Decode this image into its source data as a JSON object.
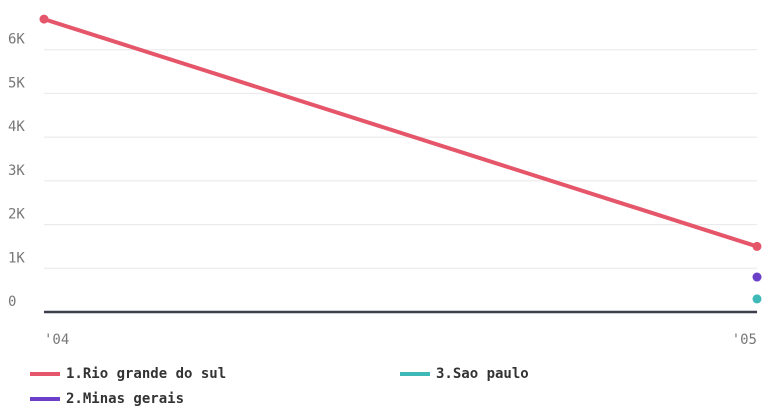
{
  "chart_data": {
    "type": "line",
    "categories": [
      "'04",
      "'05"
    ],
    "series": [
      {
        "name": "1.Rio grande do sul",
        "color": "#e5566a",
        "values": [
          6700,
          1500
        ]
      },
      {
        "name": "2.Minas gerais",
        "color": "#6c3fc8",
        "values": [
          null,
          800
        ]
      },
      {
        "name": "3.Sao paulo",
        "color": "#3fb8b8",
        "values": [
          null,
          300
        ]
      }
    ],
    "ylim": [
      0,
      7000
    ],
    "yticks": [
      0,
      {
        "value": 1000,
        "label": "1K"
      },
      {
        "value": 2000,
        "label": "2K"
      },
      {
        "value": 3000,
        "label": "3K"
      },
      {
        "value": 4000,
        "label": "4K"
      },
      {
        "value": 5000,
        "label": "5K"
      },
      {
        "value": 6000,
        "label": "6K"
      }
    ],
    "grid": true
  }
}
